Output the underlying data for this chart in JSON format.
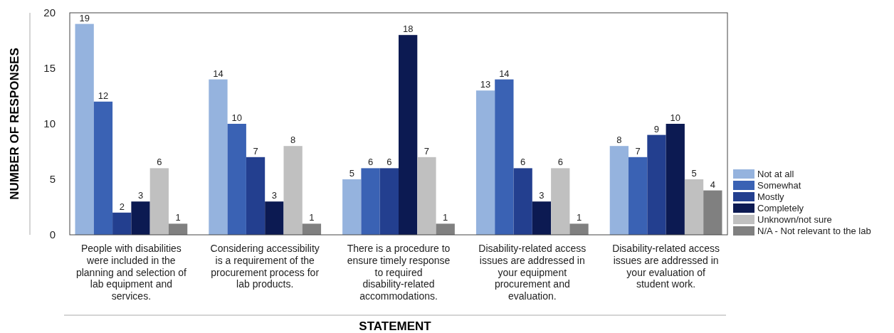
{
  "chart_data": {
    "type": "bar",
    "xlabel": "STATEMENT",
    "ylabel": "NUMBER OF RESPONSES",
    "categories": [
      "People with disabilities were included in the planning and selection of lab equipment and services.",
      "Considering accessibility is a requirement of the procurement process for lab products.",
      "There is a procedure to ensure timely response to required disability-related accommodations.",
      "Disability-related access issues are addressed in your equipment procurement and evaluation.",
      "Disability-related access issues are addressed in your evaluation of student work."
    ],
    "series": [
      {
        "name": "Not at all",
        "color": "#95b3de",
        "values": [
          19,
          14,
          5,
          13,
          8
        ]
      },
      {
        "name": "Somewhat",
        "color": "#3a62b4",
        "values": [
          12,
          10,
          6,
          14,
          7
        ]
      },
      {
        "name": "Mostly",
        "color": "#233f8f",
        "values": [
          2,
          7,
          6,
          6,
          9
        ]
      },
      {
        "name": "Completely",
        "color": "#0c1a52",
        "values": [
          3,
          3,
          18,
          3,
          10
        ]
      },
      {
        "name": "Unknown/not sure",
        "color": "#c0c0c0",
        "values": [
          6,
          8,
          7,
          6,
          5
        ]
      },
      {
        "name": "N/A - Not relevant to the lab",
        "color": "#808080",
        "values": [
          1,
          1,
          1,
          1,
          4
        ]
      }
    ],
    "ylim": [
      0,
      20
    ],
    "yticks": [
      0,
      5,
      10,
      15,
      20
    ],
    "data_labels": true,
    "legend": "right",
    "grid": false
  }
}
